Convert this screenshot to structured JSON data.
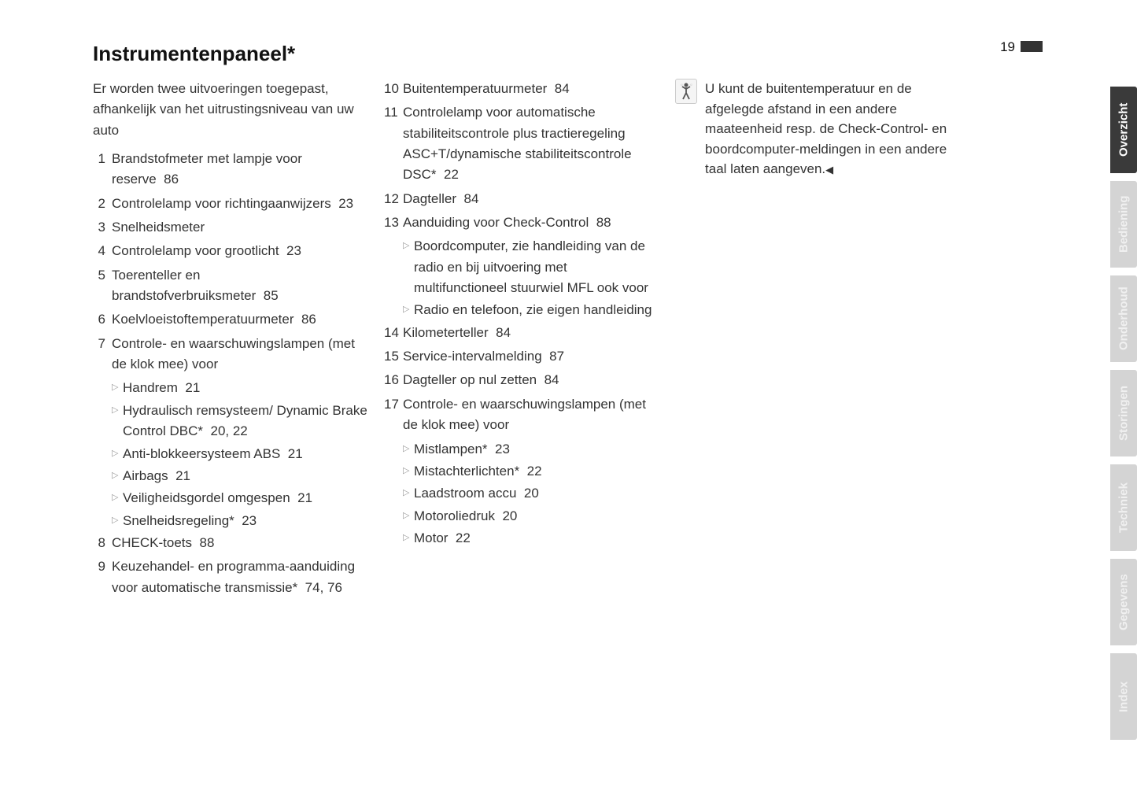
{
  "page": {
    "title": "Instrumentenpaneel*",
    "number": "19"
  },
  "intro": "Er worden twee uitvoeringen toegepast, afhankelijk van het uitrustingsniveau van uw auto",
  "col1_items": [
    {
      "n": "1",
      "t": "Brandstofmeter met lampje voor reserve",
      "r": "86"
    },
    {
      "n": "2",
      "t": "Controlelamp voor richtingaanwijzers",
      "r": "23"
    },
    {
      "n": "3",
      "t": "Snelheidsmeter",
      "r": ""
    },
    {
      "n": "4",
      "t": "Controlelamp voor grootlicht",
      "r": "23"
    },
    {
      "n": "5",
      "t": "Toerenteller en brandstofverbruiksmeter",
      "r": "85"
    },
    {
      "n": "6",
      "t": "Koelvloeistoftemperatuurmeter",
      "r": "86"
    },
    {
      "n": "7",
      "t": "Controle- en waarschuwingslampen (met de klok mee) voor",
      "r": ""
    }
  ],
  "col1_subs": [
    {
      "t": "Handrem",
      "r": "21"
    },
    {
      "t": "Hydraulisch remsysteem/ Dynamic Brake Control DBC*",
      "r": "20, 22"
    },
    {
      "t": "Anti-blokkeersysteem ABS",
      "r": "21"
    },
    {
      "t": "Airbags",
      "r": "21"
    },
    {
      "t": "Veiligheidsgordel omgespen",
      "r": "21"
    },
    {
      "t": "Snelheidsregeling*",
      "r": "23"
    }
  ],
  "col1_tail": [
    {
      "n": "8",
      "t": "CHECK-toets",
      "r": "88"
    },
    {
      "n": "9",
      "t": "Keuzehandel- en programma-aanduiding voor automatische transmissie*",
      "r": "74, 76"
    }
  ],
  "col2_items": [
    {
      "n": "10",
      "t": "Buitentemperatuurmeter",
      "r": "84"
    },
    {
      "n": "11",
      "t": "Controlelamp voor automatische stabiliteitscontrole plus tractieregeling ASC+T/dynamische stabiliteitscontrole DSC*",
      "r": "22"
    },
    {
      "n": "12",
      "t": "Dagteller",
      "r": "84"
    },
    {
      "n": "13",
      "t": "Aanduiding voor Check-Control",
      "r": "88"
    }
  ],
  "col2_subs": [
    {
      "t": "Boordcomputer, zie handleiding van de radio en bij uitvoering met multifunctioneel stuurwiel MFL ook voor",
      "r": ""
    },
    {
      "t": "Radio en telefoon, zie eigen handleiding",
      "r": ""
    }
  ],
  "col2_mid": [
    {
      "n": "14",
      "t": "Kilometerteller",
      "r": "84"
    },
    {
      "n": "15",
      "t": "Service-intervalmelding",
      "r": "87"
    },
    {
      "n": "16",
      "t": "Dagteller op nul zetten",
      "r": "84"
    },
    {
      "n": "17",
      "t": "Controle- en waarschuwingslampen (met de klok mee) voor",
      "r": ""
    }
  ],
  "col2_subs2": [
    {
      "t": "Mistlampen*",
      "r": "23"
    },
    {
      "t": "Mistachterlichten*",
      "r": "22"
    },
    {
      "t": "Laadstroom accu",
      "r": "20"
    },
    {
      "t": "Motoroliedruk",
      "r": "20"
    },
    {
      "t": "Motor",
      "r": "22"
    }
  ],
  "tip": {
    "text": "U kunt de buitentemperatuur en de afgelegde afstand in een andere maateenheid resp. de Check-Control- en boordcomputer-meldingen in een andere taal laten aangeven."
  },
  "tabs": [
    {
      "label": "Overzicht",
      "active": true
    },
    {
      "label": "Bediening",
      "active": false
    },
    {
      "label": "Onderhoud",
      "active": false
    },
    {
      "label": "Storingen",
      "active": false
    },
    {
      "label": "Techniek",
      "active": false
    },
    {
      "label": "Gegevens",
      "active": false
    },
    {
      "label": "Index",
      "active": false
    }
  ]
}
